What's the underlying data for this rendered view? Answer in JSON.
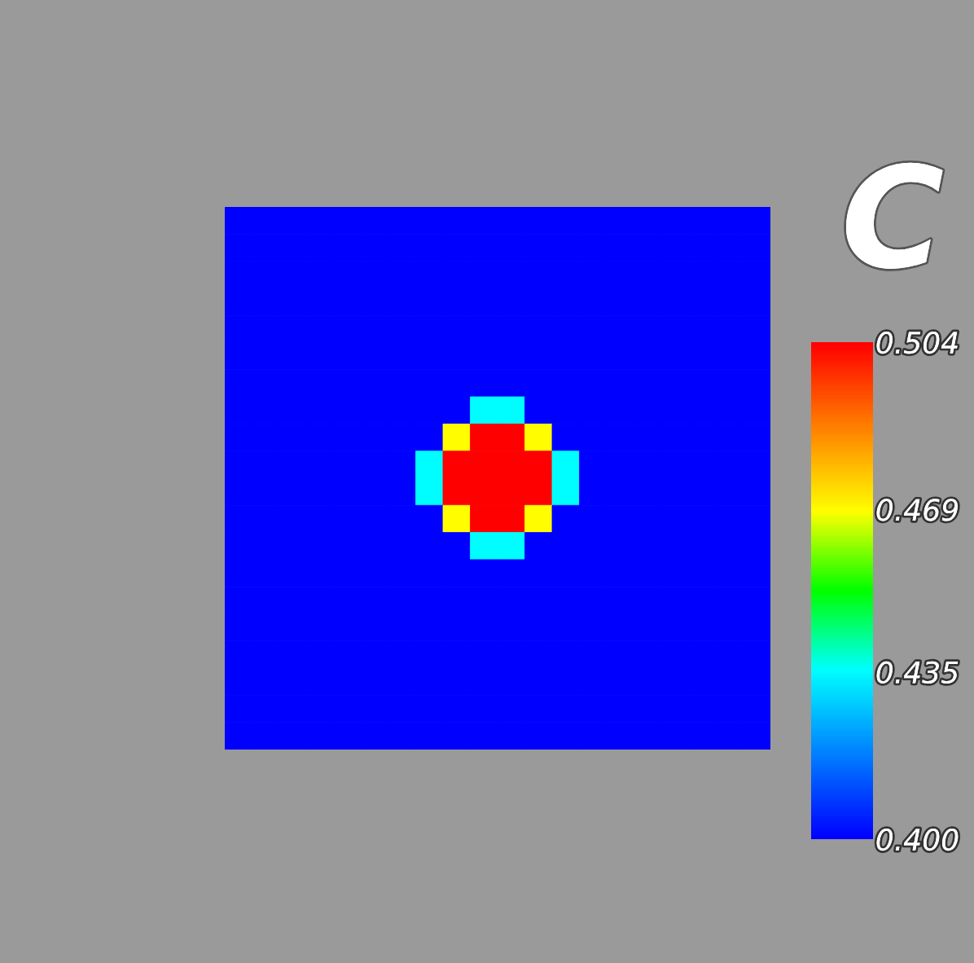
{
  "chart_data": {
    "type": "heatmap",
    "clabel": "C",
    "categories": [
      null,
      null,
      null,
      null,
      null,
      null,
      null,
      null,
      null,
      null,
      null,
      null,
      null,
      null,
      null,
      null,
      null,
      null,
      null,
      null
    ],
    "y_categories": [
      null,
      null,
      null,
      null,
      null,
      null,
      null,
      null,
      null,
      null,
      null,
      null,
      null,
      null,
      null,
      null,
      null,
      null,
      null,
      null
    ],
    "cells": [
      [
        0.4,
        0.4,
        0.4,
        0.4,
        0.4,
        0.4,
        0.4,
        0.4,
        0.4,
        0.4,
        0.4,
        0.4,
        0.4,
        0.4,
        0.4,
        0.4,
        0.4,
        0.4,
        0.4,
        0.4
      ],
      [
        0.4,
        0.4,
        0.4,
        0.4,
        0.4,
        0.4,
        0.4,
        0.4,
        0.4,
        0.4,
        0.4,
        0.4,
        0.4,
        0.4,
        0.4,
        0.4,
        0.4,
        0.4,
        0.4,
        0.4
      ],
      [
        0.4,
        0.4,
        0.4,
        0.4,
        0.4,
        0.4,
        0.4,
        0.4,
        0.4,
        0.4,
        0.4,
        0.4,
        0.4,
        0.4,
        0.4,
        0.4,
        0.4,
        0.4,
        0.4,
        0.4
      ],
      [
        0.4,
        0.4,
        0.4,
        0.4,
        0.4,
        0.4,
        0.4,
        0.4,
        0.4,
        0.4,
        0.4,
        0.4,
        0.4,
        0.4,
        0.4,
        0.4,
        0.4,
        0.4,
        0.4,
        0.4
      ],
      [
        0.4,
        0.4,
        0.4,
        0.4,
        0.4,
        0.4,
        0.4,
        0.4,
        0.4,
        0.4,
        0.4,
        0.4,
        0.4,
        0.4,
        0.4,
        0.4,
        0.4,
        0.4,
        0.4,
        0.4
      ],
      [
        0.4,
        0.4,
        0.4,
        0.4,
        0.4,
        0.4,
        0.4,
        0.4,
        0.4,
        0.4,
        0.4,
        0.4,
        0.4,
        0.4,
        0.4,
        0.4,
        0.4,
        0.4,
        0.4,
        0.4
      ],
      [
        0.4,
        0.4,
        0.4,
        0.4,
        0.4,
        0.4,
        0.4,
        0.4,
        0.4,
        0.4,
        0.4,
        0.4,
        0.4,
        0.4,
        0.4,
        0.4,
        0.4,
        0.4,
        0.4,
        0.4
      ],
      [
        0.4,
        0.4,
        0.4,
        0.4,
        0.4,
        0.4,
        0.4,
        0.4,
        0.4,
        0.435,
        0.435,
        0.4,
        0.4,
        0.4,
        0.4,
        0.4,
        0.4,
        0.4,
        0.4,
        0.4
      ],
      [
        0.4,
        0.4,
        0.4,
        0.4,
        0.4,
        0.4,
        0.4,
        0.4,
        0.469,
        0.504,
        0.504,
        0.469,
        0.4,
        0.4,
        0.4,
        0.4,
        0.4,
        0.4,
        0.4,
        0.4
      ],
      [
        0.4,
        0.4,
        0.4,
        0.4,
        0.4,
        0.4,
        0.4,
        0.435,
        0.504,
        0.504,
        0.504,
        0.504,
        0.435,
        0.4,
        0.4,
        0.4,
        0.4,
        0.4,
        0.4,
        0.4
      ],
      [
        0.4,
        0.4,
        0.4,
        0.4,
        0.4,
        0.4,
        0.4,
        0.435,
        0.504,
        0.504,
        0.504,
        0.504,
        0.435,
        0.4,
        0.4,
        0.4,
        0.4,
        0.4,
        0.4,
        0.4
      ],
      [
        0.4,
        0.4,
        0.4,
        0.4,
        0.4,
        0.4,
        0.4,
        0.4,
        0.469,
        0.504,
        0.504,
        0.469,
        0.4,
        0.4,
        0.4,
        0.4,
        0.4,
        0.4,
        0.4,
        0.4
      ],
      [
        0.4,
        0.4,
        0.4,
        0.4,
        0.4,
        0.4,
        0.4,
        0.4,
        0.4,
        0.435,
        0.435,
        0.4,
        0.4,
        0.4,
        0.4,
        0.4,
        0.4,
        0.4,
        0.4,
        0.4
      ],
      [
        0.4,
        0.4,
        0.4,
        0.4,
        0.4,
        0.4,
        0.4,
        0.4,
        0.4,
        0.4,
        0.4,
        0.4,
        0.4,
        0.4,
        0.4,
        0.4,
        0.4,
        0.4,
        0.4,
        0.4
      ],
      [
        0.4,
        0.4,
        0.4,
        0.4,
        0.4,
        0.4,
        0.4,
        0.4,
        0.4,
        0.4,
        0.4,
        0.4,
        0.4,
        0.4,
        0.4,
        0.4,
        0.4,
        0.4,
        0.4,
        0.4
      ],
      [
        0.4,
        0.4,
        0.4,
        0.4,
        0.4,
        0.4,
        0.4,
        0.4,
        0.4,
        0.4,
        0.4,
        0.4,
        0.4,
        0.4,
        0.4,
        0.4,
        0.4,
        0.4,
        0.4,
        0.4
      ],
      [
        0.4,
        0.4,
        0.4,
        0.4,
        0.4,
        0.4,
        0.4,
        0.4,
        0.4,
        0.4,
        0.4,
        0.4,
        0.4,
        0.4,
        0.4,
        0.4,
        0.4,
        0.4,
        0.4,
        0.4
      ],
      [
        0.4,
        0.4,
        0.4,
        0.4,
        0.4,
        0.4,
        0.4,
        0.4,
        0.4,
        0.4,
        0.4,
        0.4,
        0.4,
        0.4,
        0.4,
        0.4,
        0.4,
        0.4,
        0.4,
        0.4
      ],
      [
        0.4,
        0.4,
        0.4,
        0.4,
        0.4,
        0.4,
        0.4,
        0.4,
        0.4,
        0.4,
        0.4,
        0.4,
        0.4,
        0.4,
        0.4,
        0.4,
        0.4,
        0.4,
        0.4,
        0.4
      ],
      [
        0.4,
        0.4,
        0.4,
        0.4,
        0.4,
        0.4,
        0.4,
        0.4,
        0.4,
        0.4,
        0.4,
        0.4,
        0.4,
        0.4,
        0.4,
        0.4,
        0.4,
        0.4,
        0.4,
        0.4
      ]
    ],
    "clim": [
      0.4,
      0.504
    ],
    "cticks": [
      {
        "value": 0.4,
        "label": "0.400"
      },
      0.435,
      0.469,
      0.504
    ],
    "tick_labels": false
  }
}
